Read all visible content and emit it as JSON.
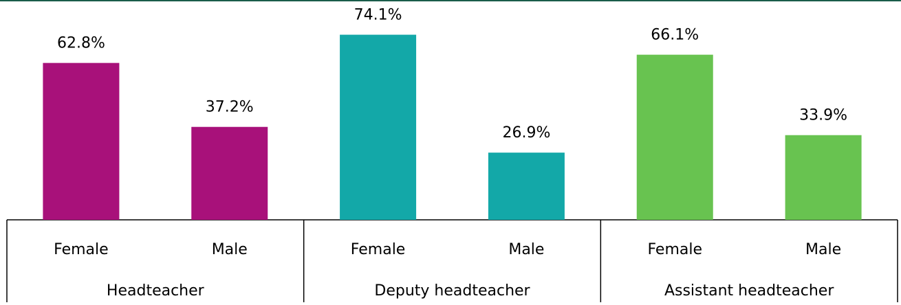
{
  "chart_data": {
    "type": "bar",
    "groups": [
      {
        "name": "Headteacher",
        "color": "#a8117a",
        "categories": [
          "Female",
          "Male"
        ],
        "values": [
          62.8,
          37.2
        ],
        "value_labels": [
          "62.8%",
          "37.2%"
        ]
      },
      {
        "name": "Deputy headteacher",
        "color": "#13a8a8",
        "categories": [
          "Female",
          "Male"
        ],
        "values": [
          74.1,
          26.9
        ],
        "value_labels": [
          "74.1%",
          "26.9%"
        ]
      },
      {
        "name": "Assistant headteacher",
        "color": "#68c350",
        "categories": [
          "Female",
          "Male"
        ],
        "values": [
          66.1,
          33.9
        ],
        "value_labels": [
          "66.1%",
          "33.9%"
        ]
      }
    ],
    "ylim": [
      0,
      88
    ]
  }
}
